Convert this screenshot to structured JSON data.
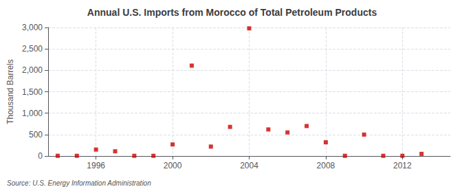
{
  "chart_data": {
    "type": "scatter",
    "title": "Annual U.S. Imports from Morocco of Total Petroleum Products",
    "ylabel": "Thousand Barrels",
    "annotations": [
      "Source: U.S. Energy Information Administration"
    ],
    "x": [
      1994,
      1995,
      1996,
      1997,
      1998,
      1999,
      2000,
      2001,
      2002,
      2003,
      2004,
      2005,
      2006,
      2007,
      2008,
      2009,
      2010,
      2011,
      2012,
      2013
    ],
    "values": [
      5,
      5,
      150,
      110,
      5,
      5,
      270,
      2110,
      220,
      680,
      2980,
      620,
      550,
      700,
      320,
      5,
      500,
      5,
      5,
      50
    ],
    "color": "#cc0000",
    "marker": "square",
    "xlim": [
      1993.5,
      2014.5
    ],
    "xticks": [
      1996,
      2000,
      2004,
      2008,
      2012
    ],
    "ylim": [
      0,
      3000
    ],
    "yticks": [
      0,
      500,
      {
        "value": 1000,
        "label": "1,000"
      },
      {
        "value": 1500,
        "label": "1,500"
      },
      {
        "value": 2000,
        "label": "2,000"
      },
      {
        "value": 2500,
        "label": "2,500"
      },
      {
        "value": 3000,
        "label": "3,000"
      }
    ],
    "grid": true
  }
}
